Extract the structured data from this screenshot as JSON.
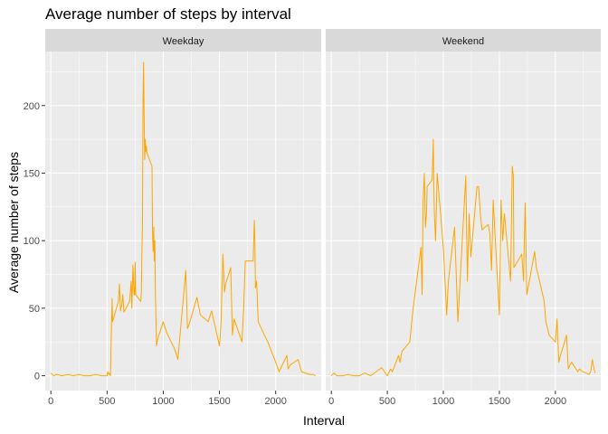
{
  "chart_data": {
    "type": "line",
    "title": "Average number of steps by interval",
    "xlabel": "Interval",
    "ylabel": "Average number of steps",
    "xlim": [
      -50,
      2405
    ],
    "ylim": [
      -11,
      240
    ],
    "x_ticks": [
      0,
      500,
      1000,
      1500,
      2000
    ],
    "y_ticks": [
      0,
      50,
      100,
      150,
      200
    ],
    "grid": true,
    "line_color": "#FFA500",
    "panels": [
      {
        "name": "Weekday",
        "series": [
          {
            "x": [
              0,
              25,
              50,
              100,
              150,
              200,
              250,
              300,
              350,
              400,
              450,
              500,
              505,
              515,
              520,
              530,
              535,
              545,
              550,
              600,
              610,
              620,
              630,
              640,
              650,
              700,
              715,
              720,
              725,
              730,
              740,
              745,
              750,
              755,
              800,
              805,
              810,
              815,
              820,
              825,
              830,
              835,
              840,
              845,
              850,
              855,
              900,
              905,
              910,
              915,
              920,
              925,
              930,
              935,
              940,
              950,
              1000,
              1030,
              1100,
              1130,
              1200,
              1215,
              1230,
              1300,
              1330,
              1400,
              1430,
              1500,
              1515,
              1530,
              1545,
              1555,
              1600,
              1615,
              1630,
              1700,
              1715,
              1730,
              1740,
              1800,
              1810,
              1815,
              1820,
              1830,
              1845,
              1900,
              1930,
              2000,
              2030,
              2100,
              2110,
              2130,
              2200,
              2230,
              2300,
              2330,
              2355
            ],
            "y": [
              2,
              0,
              1,
              0,
              1,
              0,
              1,
              0,
              0,
              1,
              0,
              0,
              3,
              1,
              2,
              0,
              20,
              57,
              40,
              55,
              68,
              48,
              52,
              60,
              47,
              55,
              70,
              50,
              65,
              82,
              60,
              60,
              84,
              60,
              55,
              62,
              89,
              115,
              205,
              232,
              192,
              160,
              175,
              166,
              170,
              165,
              155,
              105,
              92,
              110,
              85,
              100,
              60,
              40,
              22,
              27,
              40,
              32,
              20,
              12,
              78,
              35,
              38,
              58,
              45,
              40,
              48,
              22,
              40,
              90,
              62,
              68,
              80,
              30,
              42,
              25,
              50,
              85,
              85,
              85,
              115,
              100,
              65,
              70,
              40,
              30,
              25,
              10,
              3,
              15,
              5,
              8,
              12,
              3,
              1,
              1,
              0
            ]
          }
        ]
      },
      {
        "name": "Weekend",
        "series": [
          {
            "x": [
              0,
              25,
              50,
              100,
              150,
              200,
              250,
              300,
              350,
              400,
              450,
              500,
              530,
              545,
              600,
              615,
              630,
              700,
              730,
              800,
              810,
              820,
              830,
              840,
              850,
              855,
              900,
              905,
              910,
              915,
              920,
              930,
              945,
              1000,
              1030,
              1045,
              1100,
              1130,
              1200,
              1215,
              1230,
              1245,
              1300,
              1315,
              1330,
              1345,
              1400,
              1415,
              1430,
              1445,
              1500,
              1515,
              1530,
              1545,
              1600,
              1615,
              1625,
              1630,
              1700,
              1715,
              1730,
              1745,
              1800,
              1815,
              1830,
              1845,
              1900,
              1915,
              1930,
              1945,
              2000,
              2015,
              2030,
              2045,
              2100,
              2115,
              2130,
              2145,
              2200,
              2215,
              2230,
              2245,
              2300,
              2315,
              2330,
              2345,
              2355
            ],
            "y": [
              0,
              2,
              0,
              0,
              1,
              0,
              0,
              2,
              0,
              3,
              6,
              0,
              5,
              3,
              15,
              10,
              18,
              25,
              50,
              95,
              60,
              130,
              150,
              110,
              120,
              140,
              145,
              160,
              175,
              140,
              120,
              100,
              150,
              95,
              45,
              70,
              110,
              40,
              148,
              70,
              120,
              88,
              140,
              140,
              120,
              108,
              112,
              105,
              78,
              130,
              45,
              130,
              100,
              120,
              70,
              155,
              148,
              80,
              90,
              70,
              128,
              60,
              85,
              92,
              80,
              75,
              55,
              40,
              35,
              30,
              25,
              42,
              10,
              15,
              30,
              5,
              8,
              10,
              3,
              5,
              4,
              3,
              1,
              3,
              12,
              5,
              2
            ]
          }
        ]
      }
    ]
  }
}
